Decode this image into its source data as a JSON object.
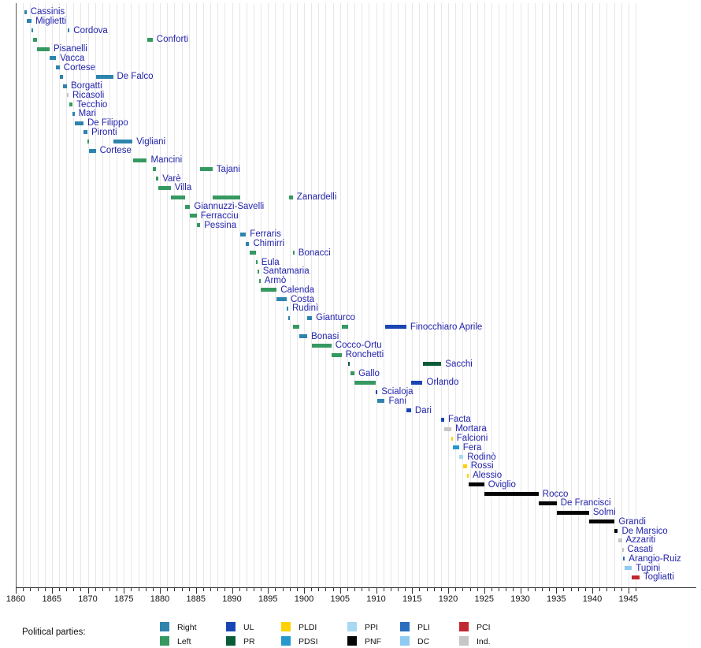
{
  "chart_data": {
    "type": "timeline",
    "title": "",
    "x_axis": {
      "min": 1860,
      "max": 1947,
      "tick_labels": [
        "1860",
        "1865",
        "1870",
        "1875",
        "1880",
        "1885",
        "1890",
        "1895",
        "1900",
        "1905",
        "1910",
        "1915",
        "1920",
        "1925",
        "1930",
        "1935",
        "1940",
        "1945"
      ],
      "major_tick_interval": 5,
      "minor_tick_interval": 1,
      "grid": "vertical yearly light gray"
    },
    "legend": {
      "title": "Political parties:",
      "entries": [
        {
          "label": "Right",
          "color": "#2e84ad"
        },
        {
          "label": "Left",
          "color": "#359961"
        },
        {
          "label": "UL",
          "color": "#1a46b4"
        },
        {
          "label": "PR",
          "color": "#0a5c38"
        },
        {
          "label": "PLDI",
          "color": "#fdd200"
        },
        {
          "label": "PDSI",
          "color": "#2599ce"
        },
        {
          "label": "PPI",
          "color": "#a8d8f4"
        },
        {
          "label": "PNF",
          "color": "#050505"
        },
        {
          "label": "PLI",
          "color": "#2b6dbf"
        },
        {
          "label": "DC",
          "color": "#8fcaf2"
        },
        {
          "label": "PCI",
          "color": "#c2282f"
        },
        {
          "label": "Ind.",
          "color": "#c6c6c6"
        }
      ]
    },
    "ministers": [
      {
        "name": "Cassinis",
        "terms": [
          {
            "start": 1861.2,
            "end": 1861.5,
            "party": "Right"
          }
        ]
      },
      {
        "name": "Miglietti",
        "terms": [
          {
            "start": 1861.5,
            "end": 1862.2,
            "party": "Right"
          }
        ]
      },
      {
        "name": "Cordova",
        "terms": [
          {
            "start": 1862.2,
            "end": 1862.35,
            "party": "Right"
          },
          {
            "start": 1867.25,
            "end": 1867.45,
            "party": "Right"
          }
        ]
      },
      {
        "name": "Conforti",
        "terms": [
          {
            "start": 1862.35,
            "end": 1862.95,
            "party": "Left"
          },
          {
            "start": 1878.2,
            "end": 1879.0,
            "party": "Left"
          }
        ]
      },
      {
        "name": "Pisanelli",
        "terms": [
          {
            "start": 1862.95,
            "end": 1864.7,
            "party": "Left"
          }
        ]
      },
      {
        "name": "Vacca",
        "terms": [
          {
            "start": 1864.7,
            "end": 1865.6,
            "party": "Right"
          }
        ]
      },
      {
        "name": "Cortese",
        "terms": [
          {
            "start": 1865.6,
            "end": 1866.1,
            "party": "Right"
          }
        ]
      },
      {
        "name": "De Falco",
        "terms": [
          {
            "start": 1866.1,
            "end": 1866.6,
            "party": "Right"
          },
          {
            "start": 1871.1,
            "end": 1873.5,
            "party": "Right"
          }
        ]
      },
      {
        "name": "Borgatti",
        "terms": [
          {
            "start": 1866.6,
            "end": 1867.1,
            "party": "Right"
          }
        ]
      },
      {
        "name": "Ricasoli",
        "terms": [
          {
            "start": 1867.1,
            "end": 1867.25,
            "party": "Ind."
          }
        ]
      },
      {
        "name": "Tecchio",
        "terms": [
          {
            "start": 1867.45,
            "end": 1867.9,
            "party": "Left"
          }
        ]
      },
      {
        "name": "Mari",
        "terms": [
          {
            "start": 1867.9,
            "end": 1868.15,
            "party": "Right"
          }
        ]
      },
      {
        "name": "De Filippo",
        "terms": [
          {
            "start": 1868.15,
            "end": 1869.4,
            "party": "Right"
          }
        ]
      },
      {
        "name": "Pironti",
        "terms": [
          {
            "start": 1869.4,
            "end": 1869.95,
            "party": "Right"
          }
        ]
      },
      {
        "name": "Vigliani",
        "terms": [
          {
            "start": 1869.95,
            "end": 1870.15,
            "party": "Left"
          },
          {
            "start": 1873.5,
            "end": 1876.2,
            "party": "Right"
          }
        ]
      },
      {
        "name": "Cortese",
        "terms": [
          {
            "start": 1870.15,
            "end": 1871.1,
            "party": "Right"
          }
        ]
      },
      {
        "name": "Mancini",
        "terms": [
          {
            "start": 1876.3,
            "end": 1878.2,
            "party": "Left"
          }
        ]
      },
      {
        "name": "Tajani",
        "terms": [
          {
            "start": 1879.0,
            "end": 1879.5,
            "party": "Left"
          },
          {
            "start": 1885.6,
            "end": 1887.3,
            "party": "Left"
          }
        ]
      },
      {
        "name": "Varè",
        "terms": [
          {
            "start": 1879.5,
            "end": 1879.8,
            "party": "Left"
          }
        ]
      },
      {
        "name": "Villa",
        "terms": [
          {
            "start": 1879.8,
            "end": 1881.5,
            "party": "Left"
          }
        ]
      },
      {
        "name": "Zanardelli",
        "terms": [
          {
            "start": 1881.5,
            "end": 1883.5,
            "party": "Left"
          },
          {
            "start": 1887.3,
            "end": 1891.1,
            "party": "Left"
          },
          {
            "start": 1897.95,
            "end": 1898.45,
            "party": "Left"
          }
        ]
      },
      {
        "name": "Giannuzzi-Savelli",
        "terms": [
          {
            "start": 1883.5,
            "end": 1884.2,
            "party": "Left"
          }
        ]
      },
      {
        "name": "Ferracciu",
        "terms": [
          {
            "start": 1884.2,
            "end": 1885.1,
            "party": "Left"
          }
        ]
      },
      {
        "name": "Pessina",
        "terms": [
          {
            "start": 1885.1,
            "end": 1885.6,
            "party": "Left"
          }
        ]
      },
      {
        "name": "Ferraris",
        "terms": [
          {
            "start": 1891.1,
            "end": 1891.95,
            "party": "Right"
          }
        ]
      },
      {
        "name": "Chimirri",
        "terms": [
          {
            "start": 1891.95,
            "end": 1892.4,
            "party": "Right"
          }
        ]
      },
      {
        "name": "Bonacci",
        "terms": [
          {
            "start": 1892.4,
            "end": 1893.3,
            "party": "Left"
          },
          {
            "start": 1898.45,
            "end": 1898.65,
            "party": "Left"
          }
        ]
      },
      {
        "name": "Eula",
        "terms": [
          {
            "start": 1893.3,
            "end": 1893.5,
            "party": "Left"
          }
        ]
      },
      {
        "name": "Santamaria",
        "terms": [
          {
            "start": 1893.5,
            "end": 1893.75,
            "party": "Left"
          }
        ]
      },
      {
        "name": "Armò",
        "terms": [
          {
            "start": 1893.75,
            "end": 1893.95,
            "party": "Left"
          }
        ]
      },
      {
        "name": "Calenda",
        "terms": [
          {
            "start": 1893.95,
            "end": 1896.2,
            "party": "Left"
          }
        ]
      },
      {
        "name": "Costa",
        "terms": [
          {
            "start": 1896.2,
            "end": 1897.6,
            "party": "Right"
          }
        ]
      },
      {
        "name": "Rudinì",
        "terms": [
          {
            "start": 1897.6,
            "end": 1897.8,
            "party": "Right"
          }
        ]
      },
      {
        "name": "Gianturco",
        "terms": [
          {
            "start": 1897.8,
            "end": 1897.95,
            "party": "Right"
          },
          {
            "start": 1900.45,
            "end": 1901.1,
            "party": "Right"
          }
        ]
      },
      {
        "name": "Finocchiaro Aprile",
        "terms": [
          {
            "start": 1898.45,
            "end": 1899.35,
            "party": "Left"
          },
          {
            "start": 1905.2,
            "end": 1906.1,
            "party": "Left"
          },
          {
            "start": 1911.2,
            "end": 1914.2,
            "party": "UL"
          }
        ]
      },
      {
        "name": "Bonasi",
        "terms": [
          {
            "start": 1899.35,
            "end": 1900.45,
            "party": "Right"
          }
        ]
      },
      {
        "name": "Cocco-Ortu",
        "terms": [
          {
            "start": 1901.1,
            "end": 1903.8,
            "party": "Left"
          }
        ]
      },
      {
        "name": "Ronchetti",
        "terms": [
          {
            "start": 1903.8,
            "end": 1905.2,
            "party": "Left"
          }
        ]
      },
      {
        "name": "Sacchi",
        "terms": [
          {
            "start": 1906.1,
            "end": 1906.4,
            "party": "PR"
          },
          {
            "start": 1916.45,
            "end": 1919.05,
            "party": "PR"
          }
        ]
      },
      {
        "name": "Gallo",
        "terms": [
          {
            "start": 1906.4,
            "end": 1907.0,
            "party": "Left"
          }
        ]
      },
      {
        "name": "Orlando",
        "terms": [
          {
            "start": 1907.0,
            "end": 1909.9,
            "party": "Left"
          },
          {
            "start": 1914.85,
            "end": 1916.45,
            "party": "UL"
          }
        ]
      },
      {
        "name": "Scialoja",
        "terms": [
          {
            "start": 1909.9,
            "end": 1910.2,
            "party": "UL"
          }
        ]
      },
      {
        "name": "Fani",
        "terms": [
          {
            "start": 1910.2,
            "end": 1911.2,
            "party": "Right"
          }
        ]
      },
      {
        "name": "Dari",
        "terms": [
          {
            "start": 1914.2,
            "end": 1914.85,
            "party": "UL"
          }
        ]
      },
      {
        "name": "Facta",
        "terms": [
          {
            "start": 1919.05,
            "end": 1919.45,
            "party": "UL"
          }
        ]
      },
      {
        "name": "Mortara",
        "terms": [
          {
            "start": 1919.45,
            "end": 1920.45,
            "party": "Ind."
          }
        ]
      },
      {
        "name": "Falcioni",
        "terms": [
          {
            "start": 1920.4,
            "end": 1920.6,
            "party": "PLDI"
          }
        ]
      },
      {
        "name": "Fera",
        "terms": [
          {
            "start": 1920.6,
            "end": 1921.5,
            "party": "PDSI"
          }
        ]
      },
      {
        "name": "Rodinò",
        "terms": [
          {
            "start": 1921.5,
            "end": 1922.1,
            "party": "PPI"
          }
        ]
      },
      {
        "name": "Rossi",
        "terms": [
          {
            "start": 1922.1,
            "end": 1922.6,
            "party": "PLDI"
          }
        ]
      },
      {
        "name": "Alessio",
        "terms": [
          {
            "start": 1922.6,
            "end": 1922.85,
            "party": "PLDI"
          }
        ]
      },
      {
        "name": "Oviglio",
        "terms": [
          {
            "start": 1922.85,
            "end": 1925.0,
            "party": "PNF"
          }
        ]
      },
      {
        "name": "Rocco",
        "terms": [
          {
            "start": 1925.0,
            "end": 1932.55,
            "party": "PNF"
          }
        ]
      },
      {
        "name": "De Francisci",
        "terms": [
          {
            "start": 1932.55,
            "end": 1935.05,
            "party": "PNF"
          }
        ]
      },
      {
        "name": "Solmi",
        "terms": [
          {
            "start": 1935.05,
            "end": 1939.55,
            "party": "PNF"
          }
        ]
      },
      {
        "name": "Grandi",
        "terms": [
          {
            "start": 1939.55,
            "end": 1943.1,
            "party": "PNF"
          }
        ]
      },
      {
        "name": "De Marsico",
        "terms": [
          {
            "start": 1943.1,
            "end": 1943.55,
            "party": "PNF"
          }
        ]
      },
      {
        "name": "Azzariti",
        "terms": [
          {
            "start": 1943.55,
            "end": 1944.1,
            "party": "Ind."
          }
        ]
      },
      {
        "name": "Casati",
        "terms": [
          {
            "start": 1944.1,
            "end": 1944.3,
            "party": "Ind."
          }
        ]
      },
      {
        "name": "Arangio-Ruiz",
        "terms": [
          {
            "start": 1944.3,
            "end": 1944.45,
            "party": "PLI"
          }
        ]
      },
      {
        "name": "Tupini",
        "terms": [
          {
            "start": 1944.45,
            "end": 1945.5,
            "party": "DC"
          }
        ]
      },
      {
        "name": "Togliatti",
        "terms": [
          {
            "start": 1945.5,
            "end": 1946.55,
            "party": "PCI"
          }
        ]
      }
    ]
  }
}
